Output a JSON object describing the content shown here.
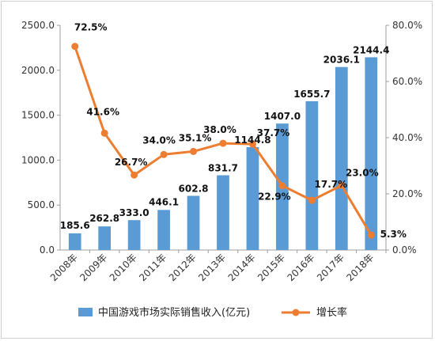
{
  "chart_data": {
    "type": "bar+line",
    "title": "",
    "categories": [
      "2008年",
      "2009年",
      "2010年",
      "2011年",
      "2012年",
      "2013年",
      "2014年",
      "2015年",
      "2016年",
      "2017年",
      "2018年"
    ],
    "series": [
      {
        "name": "中国游戏市场实际销售收入(亿元)",
        "type": "bar",
        "axis": "left",
        "values": [
          185.6,
          262.8,
          333.0,
          446.1,
          602.8,
          831.7,
          1144.8,
          1407.0,
          1655.7,
          2036.1,
          2144.4
        ],
        "labels": [
          "185.6",
          "262.8",
          "333.0",
          "446.1",
          "602.8",
          "831.7",
          "1144.8",
          "1407.0",
          "1655.7",
          "2036.1",
          "2144.4"
        ],
        "color": "#5b9bd5"
      },
      {
        "name": "增长率",
        "type": "line",
        "axis": "right",
        "values": [
          72.5,
          41.6,
          26.7,
          34.0,
          35.1,
          38.0,
          37.7,
          22.9,
          17.7,
          23.0,
          5.3
        ],
        "labels": [
          "72.5%",
          "41.6%",
          "26.7%",
          "34.0%",
          "35.1%",
          "38.0%",
          "37.7%",
          "22.9%",
          "17.7%",
          "23.0%",
          "5.3%"
        ],
        "color": "#ed7d31"
      }
    ],
    "left_axis": {
      "ylim": [
        0,
        2500
      ],
      "ticks": [
        0,
        500,
        1000,
        1500,
        2000,
        2500
      ],
      "tick_labels": [
        "0.0",
        "500.0",
        "1000.0",
        "1500.0",
        "2000.0",
        "2500.0"
      ]
    },
    "right_axis": {
      "ylim": [
        0,
        80
      ],
      "ticks": [
        0,
        20,
        40,
        60,
        80
      ],
      "tick_labels": [
        "0.0%",
        "20.0%",
        "40.0%",
        "60.0%",
        "80.0%"
      ]
    },
    "grid": false,
    "legend": "bottom"
  }
}
